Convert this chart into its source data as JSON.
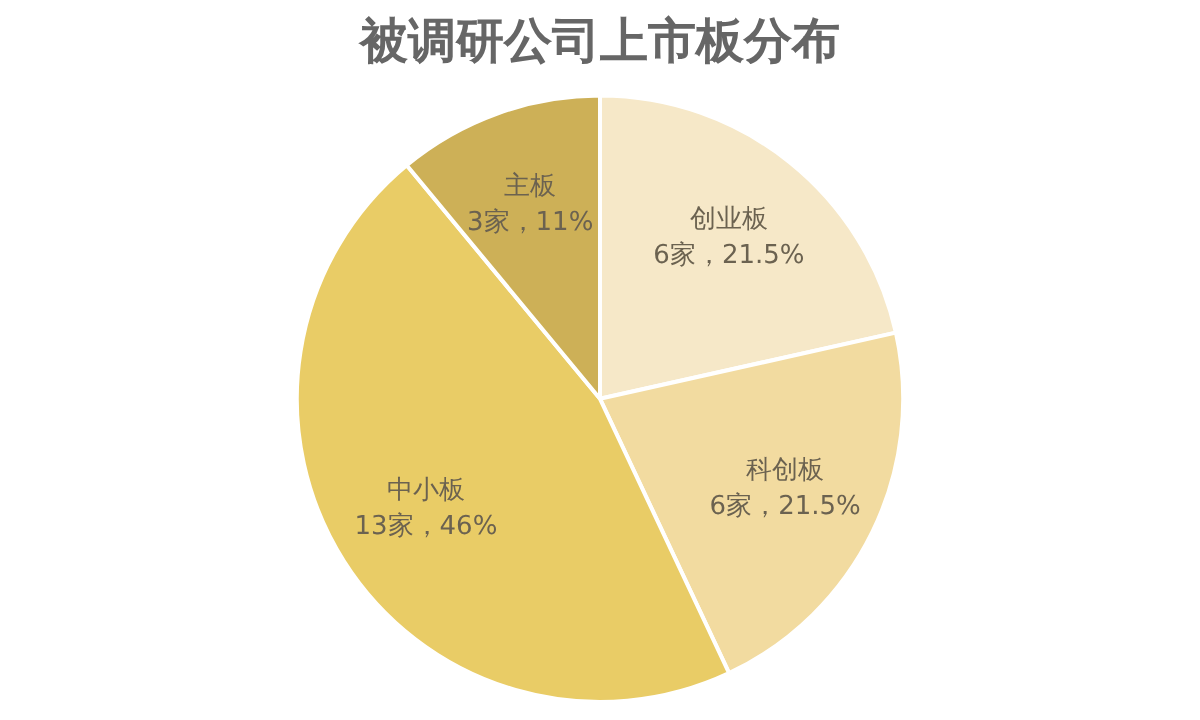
{
  "chart_data": {
    "type": "pie",
    "title": "被调研公司上市板分布",
    "categories": [
      "创业板",
      "科创板",
      "中小板",
      "主板"
    ],
    "values": [
      21.5,
      21.5,
      46,
      11
    ],
    "colors": [
      "#f6e8c8",
      "#f2dba0",
      "#e9cc66",
      "#cdb057"
    ],
    "value_labels": [
      "6家，21.5%",
      "6家，21.5%",
      "13家，46%",
      "3家，11%"
    ],
    "legend": false
  }
}
